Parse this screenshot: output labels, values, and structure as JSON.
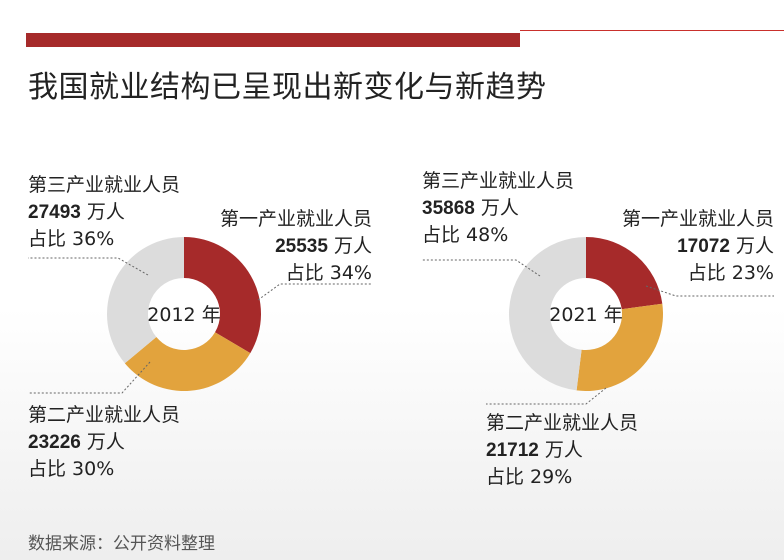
{
  "title": "我国就业结构已呈现出新变化与新趋势",
  "source": "数据来源：公开资料整理",
  "colors": {
    "bar": "#A62A2A",
    "line": "#C9302C",
    "primary": "#A62A2A",
    "secondary": "#E2A33D",
    "tertiary": "#DCDCDC"
  },
  "unit": "万人",
  "chart_data": [
    {
      "type": "pie",
      "center_label": "2012 年",
      "slices": [
        {
          "label": "第一产业就业人员",
          "value": 25535,
          "share": "占比 34%",
          "color": "#A62A2A"
        },
        {
          "label": "第二产业就业人员",
          "value": 23226,
          "share": "占比 30%",
          "color": "#E2A33D"
        },
        {
          "label": "第三产业就业人员",
          "value": 27493,
          "share": "占比 36%",
          "color": "#DCDCDC"
        }
      ]
    },
    {
      "type": "pie",
      "center_label": "2021 年",
      "slices": [
        {
          "label": "第一产业就业人员",
          "value": 17072,
          "share": "占比 23%",
          "color": "#A62A2A"
        },
        {
          "label": "第二产业就业人员",
          "value": 21712,
          "share": "占比 29%",
          "color": "#E2A33D"
        },
        {
          "label": "第三产业就业人员",
          "value": 35868,
          "share": "占比 48%",
          "color": "#DCDCDC"
        }
      ]
    }
  ]
}
